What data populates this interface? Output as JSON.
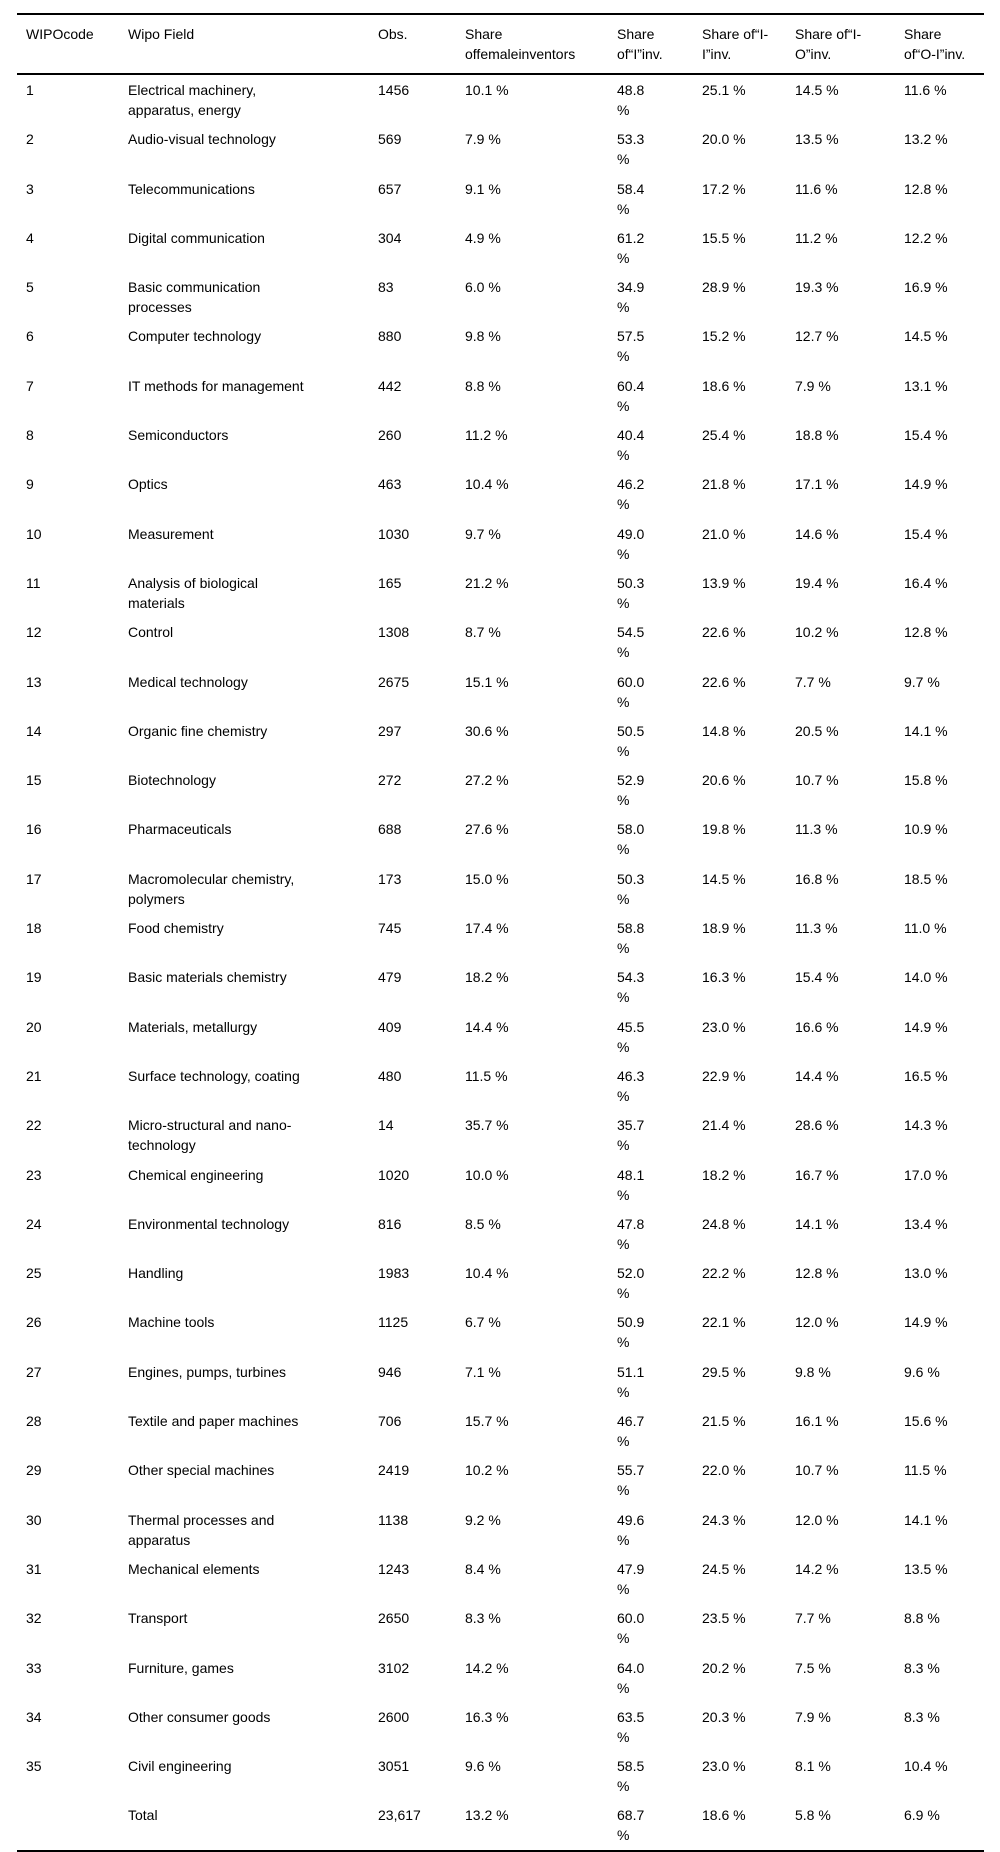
{
  "table": {
    "columns": [
      {
        "id": "wipo_code",
        "lines": [
          "WIPOcode"
        ]
      },
      {
        "id": "field",
        "lines": [
          "Wipo Field"
        ]
      },
      {
        "id": "obs",
        "lines": [
          "Obs."
        ]
      },
      {
        "id": "share_female",
        "lines": [
          "Share",
          "offemaleinventors"
        ]
      },
      {
        "id": "share_i",
        "lines": [
          "Share",
          "of“I”inv."
        ]
      },
      {
        "id": "share_ii",
        "lines": [
          "Share of“I-",
          "I”inv."
        ]
      },
      {
        "id": "share_io",
        "lines": [
          "Share of“I-",
          "O”inv."
        ]
      },
      {
        "id": "share_oi",
        "lines": [
          "Share",
          "of“O-I”inv."
        ]
      }
    ],
    "rows": [
      {
        "wipo_code": "1",
        "field": "Electrical machinery, apparatus, energy",
        "obs": "1456",
        "share_female": "10.1 %",
        "share_i": "48.8 %",
        "share_ii": "25.1 %",
        "share_io": "14.5 %",
        "share_oi": "11.6 %"
      },
      {
        "wipo_code": "2",
        "field": "Audio-visual technology",
        "obs": "569",
        "share_female": "7.9 %",
        "share_i": "53.3 %",
        "share_ii": "20.0 %",
        "share_io": "13.5 %",
        "share_oi": "13.2 %"
      },
      {
        "wipo_code": "3",
        "field": "Telecommunications",
        "obs": "657",
        "share_female": "9.1 %",
        "share_i": "58.4 %",
        "share_ii": "17.2 %",
        "share_io": "11.6 %",
        "share_oi": "12.8 %"
      },
      {
        "wipo_code": "4",
        "field": "Digital communication",
        "obs": "304",
        "share_female": "4.9 %",
        "share_i": "61.2 %",
        "share_ii": "15.5 %",
        "share_io": "11.2 %",
        "share_oi": "12.2 %"
      },
      {
        "wipo_code": "5",
        "field": "Basic communication processes",
        "obs": "83",
        "share_female": "6.0 %",
        "share_i": "34.9 %",
        "share_ii": "28.9 %",
        "share_io": "19.3 %",
        "share_oi": "16.9 %"
      },
      {
        "wipo_code": "6",
        "field": "Computer technology",
        "obs": "880",
        "share_female": "9.8 %",
        "share_i": "57.5 %",
        "share_ii": "15.2 %",
        "share_io": "12.7 %",
        "share_oi": "14.5 %"
      },
      {
        "wipo_code": "7",
        "field": "IT methods for management",
        "obs": "442",
        "share_female": "8.8 %",
        "share_i": "60.4 %",
        "share_ii": "18.6 %",
        "share_io": "7.9 %",
        "share_oi": "13.1 %"
      },
      {
        "wipo_code": "8",
        "field": "Semiconductors",
        "obs": "260",
        "share_female": "11.2 %",
        "share_i": "40.4 %",
        "share_ii": "25.4 %",
        "share_io": "18.8 %",
        "share_oi": "15.4 %"
      },
      {
        "wipo_code": "9",
        "field": "Optics",
        "obs": "463",
        "share_female": "10.4 %",
        "share_i": "46.2 %",
        "share_ii": "21.8 %",
        "share_io": "17.1 %",
        "share_oi": "14.9 %"
      },
      {
        "wipo_code": "10",
        "field": "Measurement",
        "obs": "1030",
        "share_female": "9.7 %",
        "share_i": "49.0 %",
        "share_ii": "21.0 %",
        "share_io": "14.6 %",
        "share_oi": "15.4 %"
      },
      {
        "wipo_code": "11",
        "field": "Analysis of biological materials",
        "obs": "165",
        "share_female": "21.2 %",
        "share_i": "50.3 %",
        "share_ii": "13.9 %",
        "share_io": "19.4 %",
        "share_oi": "16.4 %"
      },
      {
        "wipo_code": "12",
        "field": "Control",
        "obs": "1308",
        "share_female": "8.7 %",
        "share_i": "54.5 %",
        "share_ii": "22.6 %",
        "share_io": "10.2 %",
        "share_oi": "12.8 %"
      },
      {
        "wipo_code": "13",
        "field": "Medical technology",
        "obs": "2675",
        "share_female": "15.1 %",
        "share_i": "60.0 %",
        "share_ii": "22.6 %",
        "share_io": "7.7 %",
        "share_oi": "9.7 %"
      },
      {
        "wipo_code": "14",
        "field": "Organic fine chemistry",
        "obs": "297",
        "share_female": "30.6 %",
        "share_i": "50.5 %",
        "share_ii": "14.8 %",
        "share_io": "20.5 %",
        "share_oi": "14.1 %"
      },
      {
        "wipo_code": "15",
        "field": "Biotechnology",
        "obs": "272",
        "share_female": "27.2 %",
        "share_i": "52.9 %",
        "share_ii": "20.6 %",
        "share_io": "10.7 %",
        "share_oi": "15.8 %"
      },
      {
        "wipo_code": "16",
        "field": "Pharmaceuticals",
        "obs": "688",
        "share_female": "27.6 %",
        "share_i": "58.0 %",
        "share_ii": "19.8 %",
        "share_io": "11.3 %",
        "share_oi": "10.9 %"
      },
      {
        "wipo_code": "17",
        "field": "Macromolecular chemistry, polymers",
        "obs": "173",
        "share_female": "15.0 %",
        "share_i": "50.3 %",
        "share_ii": "14.5 %",
        "share_io": "16.8 %",
        "share_oi": "18.5 %"
      },
      {
        "wipo_code": "18",
        "field": "Food chemistry",
        "obs": "745",
        "share_female": "17.4 %",
        "share_i": "58.8 %",
        "share_ii": "18.9 %",
        "share_io": "11.3 %",
        "share_oi": "11.0 %"
      },
      {
        "wipo_code": "19",
        "field": "Basic materials chemistry",
        "obs": "479",
        "share_female": "18.2 %",
        "share_i": "54.3 %",
        "share_ii": "16.3 %",
        "share_io": "15.4 %",
        "share_oi": "14.0 %"
      },
      {
        "wipo_code": "20",
        "field": "Materials, metallurgy",
        "obs": "409",
        "share_female": "14.4 %",
        "share_i": "45.5 %",
        "share_ii": "23.0 %",
        "share_io": "16.6 %",
        "share_oi": "14.9 %"
      },
      {
        "wipo_code": "21",
        "field": "Surface technology, coating",
        "obs": "480",
        "share_female": "11.5 %",
        "share_i": "46.3 %",
        "share_ii": "22.9 %",
        "share_io": "14.4 %",
        "share_oi": "16.5 %"
      },
      {
        "wipo_code": "22",
        "field": "Micro-structural and nano-technology",
        "obs": "14",
        "share_female": "35.7 %",
        "share_i": "35.7 %",
        "share_ii": "21.4 %",
        "share_io": "28.6 %",
        "share_oi": "14.3 %"
      },
      {
        "wipo_code": "23",
        "field": "Chemical engineering",
        "obs": "1020",
        "share_female": "10.0 %",
        "share_i": "48.1 %",
        "share_ii": "18.2 %",
        "share_io": "16.7 %",
        "share_oi": "17.0 %"
      },
      {
        "wipo_code": "24",
        "field": "Environmental technology",
        "obs": "816",
        "share_female": "8.5 %",
        "share_i": "47.8 %",
        "share_ii": "24.8 %",
        "share_io": "14.1 %",
        "share_oi": "13.4 %"
      },
      {
        "wipo_code": "25",
        "field": "Handling",
        "obs": "1983",
        "share_female": "10.4 %",
        "share_i": "52.0 %",
        "share_ii": "22.2 %",
        "share_io": "12.8 %",
        "share_oi": "13.0 %"
      },
      {
        "wipo_code": "26",
        "field": "Machine tools",
        "obs": "1125",
        "share_female": "6.7 %",
        "share_i": "50.9 %",
        "share_ii": "22.1 %",
        "share_io": "12.0 %",
        "share_oi": "14.9 %"
      },
      {
        "wipo_code": "27",
        "field": "Engines, pumps, turbines",
        "obs": "946",
        "share_female": "7.1 %",
        "share_i": "51.1 %",
        "share_ii": "29.5 %",
        "share_io": "9.8 %",
        "share_oi": "9.6 %"
      },
      {
        "wipo_code": "28",
        "field": "Textile and paper machines",
        "obs": "706",
        "share_female": "15.7 %",
        "share_i": "46.7 %",
        "share_ii": "21.5 %",
        "share_io": "16.1 %",
        "share_oi": "15.6 %"
      },
      {
        "wipo_code": "29",
        "field": "Other special machines",
        "obs": "2419",
        "share_female": "10.2 %",
        "share_i": "55.7 %",
        "share_ii": "22.0 %",
        "share_io": "10.7 %",
        "share_oi": "11.5 %"
      },
      {
        "wipo_code": "30",
        "field": "Thermal processes and apparatus",
        "obs": "1138",
        "share_female": "9.2 %",
        "share_i": "49.6 %",
        "share_ii": "24.3 %",
        "share_io": "12.0 %",
        "share_oi": "14.1 %"
      },
      {
        "wipo_code": "31",
        "field": "Mechanical elements",
        "obs": "1243",
        "share_female": "8.4 %",
        "share_i": "47.9 %",
        "share_ii": "24.5 %",
        "share_io": "14.2 %",
        "share_oi": "13.5 %"
      },
      {
        "wipo_code": "32",
        "field": "Transport",
        "obs": "2650",
        "share_female": "8.3 %",
        "share_i": "60.0 %",
        "share_ii": "23.5 %",
        "share_io": "7.7 %",
        "share_oi": "8.8 %"
      },
      {
        "wipo_code": "33",
        "field": "Furniture, games",
        "obs": "3102",
        "share_female": "14.2 %",
        "share_i": "64.0 %",
        "share_ii": "20.2 %",
        "share_io": "7.5 %",
        "share_oi": "8.3 %"
      },
      {
        "wipo_code": "34",
        "field": "Other consumer goods",
        "obs": "2600",
        "share_female": "16.3 %",
        "share_i": "63.5 %",
        "share_ii": "20.3 %",
        "share_io": "7.9 %",
        "share_oi": "8.3 %"
      },
      {
        "wipo_code": "35",
        "field": "Civil engineering",
        "obs": "3051",
        "share_female": "9.6 %",
        "share_i": "58.5 %",
        "share_ii": "23.0 %",
        "share_io": "8.1 %",
        "share_oi": "10.4 %"
      }
    ],
    "total_row": {
      "wipo_code": "",
      "field": "Total",
      "obs": "23,617",
      "share_female": "13.2 %",
      "share_i": "68.7 %",
      "share_ii": "18.6 %",
      "share_io": "5.8 %",
      "share_oi": "6.9 %"
    }
  }
}
